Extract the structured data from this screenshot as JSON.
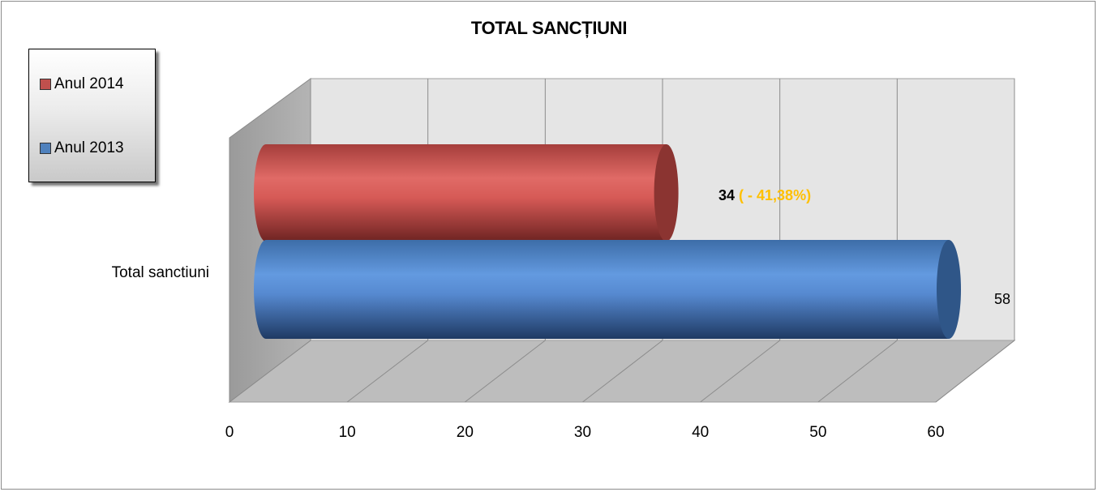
{
  "chart_data": {
    "type": "bar",
    "orientation": "horizontal",
    "style": "3d-cylinder",
    "title": "TOTAL SANCȚIUNI",
    "categories": [
      "Total sanctiuni"
    ],
    "series": [
      {
        "name": "Anul 2014",
        "values": [
          34
        ],
        "color": "#c0504d",
        "data_label": "34",
        "data_label_extra": "( - 41,38%)"
      },
      {
        "name": "Anul 2013",
        "values": [
          58
        ],
        "color": "#4f81bd",
        "data_label": "58"
      }
    ],
    "xlim": [
      0,
      60
    ],
    "ticks": [
      "0",
      "10",
      "20",
      "30",
      "40",
      "50",
      "60"
    ],
    "grid": true,
    "legend_position": "left-top",
    "label_colors": {
      "percent": "#ffc000",
      "value": "#000000"
    }
  }
}
